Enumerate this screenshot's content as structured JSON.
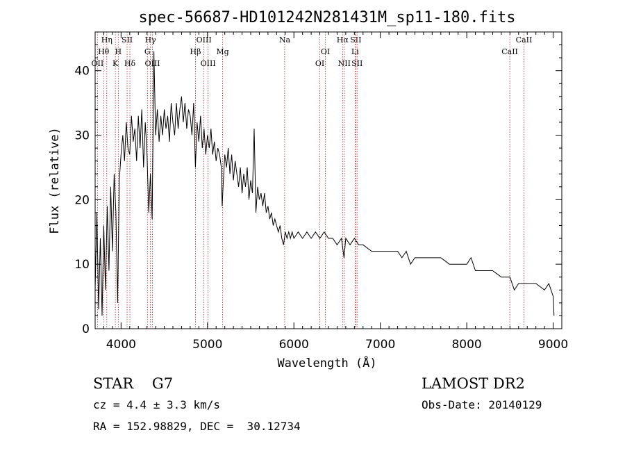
{
  "chart_data": {
    "type": "line",
    "title": "spec-56687-HD101242N281431M_sp11-180.fits",
    "xlabel": "Wavelength (Å)",
    "ylabel": "Flux (relative)",
    "xlim": [
      3700,
      9100
    ],
    "ylim": [
      0,
      46
    ],
    "xticks": [
      4000,
      5000,
      6000,
      7000,
      8000,
      9000
    ],
    "yticks": [
      0,
      10,
      20,
      30,
      40
    ],
    "grid": false,
    "series": [
      {
        "color": "#000000",
        "points": [
          [
            3700,
            6
          ],
          [
            3720,
            18
          ],
          [
            3740,
            3
          ],
          [
            3760,
            14
          ],
          [
            3780,
            2
          ],
          [
            3800,
            16
          ],
          [
            3820,
            6
          ],
          [
            3840,
            19
          ],
          [
            3860,
            9
          ],
          [
            3880,
            22
          ],
          [
            3900,
            12
          ],
          [
            3920,
            24
          ],
          [
            3940,
            18
          ],
          [
            3960,
            4
          ],
          [
            3980,
            23
          ],
          [
            4000,
            27
          ],
          [
            4020,
            30
          ],
          [
            4040,
            26
          ],
          [
            4060,
            32
          ],
          [
            4080,
            28
          ],
          [
            4100,
            27
          ],
          [
            4120,
            33
          ],
          [
            4140,
            29
          ],
          [
            4160,
            31
          ],
          [
            4180,
            26
          ],
          [
            4200,
            33
          ],
          [
            4220,
            28
          ],
          [
            4240,
            34
          ],
          [
            4260,
            25
          ],
          [
            4280,
            32
          ],
          [
            4300,
            27
          ],
          [
            4320,
            18
          ],
          [
            4340,
            24
          ],
          [
            4360,
            17
          ],
          [
            4380,
            43
          ],
          [
            4400,
            30
          ],
          [
            4420,
            34
          ],
          [
            4440,
            29
          ],
          [
            4460,
            33
          ],
          [
            4480,
            30
          ],
          [
            4500,
            34
          ],
          [
            4520,
            31
          ],
          [
            4540,
            33
          ],
          [
            4560,
            29
          ],
          [
            4580,
            35
          ],
          [
            4600,
            32
          ],
          [
            4620,
            30
          ],
          [
            4640,
            35
          ],
          [
            4660,
            31
          ],
          [
            4680,
            34
          ],
          [
            4700,
            36
          ],
          [
            4720,
            32
          ],
          [
            4740,
            35
          ],
          [
            4760,
            31
          ],
          [
            4780,
            34
          ],
          [
            4800,
            33
          ],
          [
            4820,
            30
          ],
          [
            4840,
            35
          ],
          [
            4860,
            25
          ],
          [
            4880,
            32
          ],
          [
            4900,
            29
          ],
          [
            4920,
            33
          ],
          [
            4940,
            28
          ],
          [
            4960,
            31
          ],
          [
            4980,
            27
          ],
          [
            5000,
            30
          ],
          [
            5020,
            28
          ],
          [
            5040,
            31
          ],
          [
            5060,
            27
          ],
          [
            5080,
            29
          ],
          [
            5100,
            26
          ],
          [
            5120,
            28
          ],
          [
            5140,
            27
          ],
          [
            5160,
            25
          ],
          [
            5170,
            19
          ],
          [
            5180,
            22
          ],
          [
            5200,
            27
          ],
          [
            5220,
            25
          ],
          [
            5240,
            28
          ],
          [
            5260,
            24
          ],
          [
            5280,
            27
          ],
          [
            5300,
            23
          ],
          [
            5320,
            26
          ],
          [
            5340,
            24
          ],
          [
            5360,
            22
          ],
          [
            5380,
            25
          ],
          [
            5400,
            21
          ],
          [
            5420,
            24
          ],
          [
            5440,
            22
          ],
          [
            5460,
            25
          ],
          [
            5480,
            20
          ],
          [
            5500,
            23
          ],
          [
            5520,
            21
          ],
          [
            5540,
            31
          ],
          [
            5560,
            18
          ],
          [
            5580,
            22
          ],
          [
            5600,
            20
          ],
          [
            5620,
            21
          ],
          [
            5640,
            19
          ],
          [
            5660,
            21
          ],
          [
            5680,
            18
          ],
          [
            5700,
            19
          ],
          [
            5720,
            17
          ],
          [
            5740,
            18
          ],
          [
            5760,
            16
          ],
          [
            5780,
            17
          ],
          [
            5800,
            16
          ],
          [
            5820,
            15
          ],
          [
            5840,
            16
          ],
          [
            5860,
            14
          ],
          [
            5880,
            13
          ],
          [
            5900,
            15
          ],
          [
            5920,
            14
          ],
          [
            5940,
            15
          ],
          [
            5960,
            14
          ],
          [
            5980,
            15
          ],
          [
            6000,
            14
          ],
          [
            6050,
            15
          ],
          [
            6100,
            14
          ],
          [
            6150,
            15
          ],
          [
            6200,
            14
          ],
          [
            6250,
            15
          ],
          [
            6300,
            14
          ],
          [
            6350,
            15
          ],
          [
            6400,
            14
          ],
          [
            6450,
            14
          ],
          [
            6500,
            13
          ],
          [
            6550,
            14
          ],
          [
            6580,
            11
          ],
          [
            6600,
            14
          ],
          [
            6650,
            13
          ],
          [
            6700,
            14
          ],
          [
            6750,
            13
          ],
          [
            6800,
            13
          ],
          [
            6900,
            12
          ],
          [
            7000,
            12
          ],
          [
            7100,
            12
          ],
          [
            7200,
            12
          ],
          [
            7250,
            11
          ],
          [
            7300,
            12
          ],
          [
            7350,
            10
          ],
          [
            7400,
            11
          ],
          [
            7500,
            11
          ],
          [
            7600,
            11
          ],
          [
            7700,
            11
          ],
          [
            7800,
            10
          ],
          [
            7900,
            10
          ],
          [
            8000,
            10
          ],
          [
            8050,
            11
          ],
          [
            8100,
            9
          ],
          [
            8200,
            9
          ],
          [
            8300,
            9
          ],
          [
            8400,
            8
          ],
          [
            8500,
            8
          ],
          [
            8550,
            6
          ],
          [
            8600,
            7
          ],
          [
            8700,
            7
          ],
          [
            8800,
            7
          ],
          [
            8900,
            6
          ],
          [
            8950,
            7
          ],
          [
            9000,
            5
          ],
          [
            9010,
            2
          ]
        ]
      }
    ],
    "lines": [
      {
        "label": "Hη",
        "x": 3835,
        "row": 0
      },
      {
        "label": "Hθ",
        "x": 3798,
        "row": 1
      },
      {
        "label": "OII",
        "x": 3727,
        "row": 2
      },
      {
        "label": "SII",
        "x": 4070,
        "row": 0
      },
      {
        "label": "H",
        "x": 3968,
        "row": 1
      },
      {
        "label": "K",
        "x": 3934,
        "row": 2
      },
      {
        "label": "Hδ",
        "x": 4102,
        "row": 2
      },
      {
        "label": "Hγ",
        "x": 4340,
        "row": 0
      },
      {
        "label": "G",
        "x": 4305,
        "row": 1
      },
      {
        "label": "OIII",
        "x": 4363,
        "row": 2
      },
      {
        "label": "OIII",
        "x": 4959,
        "row": 0
      },
      {
        "label": "Hβ",
        "x": 4861,
        "row": 1
      },
      {
        "label": "Mg",
        "x": 5175,
        "row": 1
      },
      {
        "label": "OIII",
        "x": 5007,
        "row": 2
      },
      {
        "label": "Na",
        "x": 5893,
        "row": 0
      },
      {
        "label": "OI",
        "x": 6364,
        "row": 1
      },
      {
        "label": "OI",
        "x": 6300,
        "row": 2
      },
      {
        "label": "Hα",
        "x": 6563,
        "row": 0
      },
      {
        "label": "SII",
        "x": 6716,
        "row": 0
      },
      {
        "label": "Li",
        "x": 6708,
        "row": 1
      },
      {
        "label": "NII",
        "x": 6583,
        "row": 2
      },
      {
        "label": "SII",
        "x": 6731,
        "row": 2
      },
      {
        "label": "CaII",
        "x": 8662,
        "row": 0
      },
      {
        "label": "CaII",
        "x": 8498,
        "row": 1
      }
    ]
  },
  "info": {
    "class": "STAR    G7",
    "cz": "cz = 4.4 ± 3.3 km/s",
    "coords": "RA = 152.98829, DEC =  30.12734",
    "survey": "LAMOST DR2",
    "obs_date": "Obs-Date: 20140129"
  }
}
